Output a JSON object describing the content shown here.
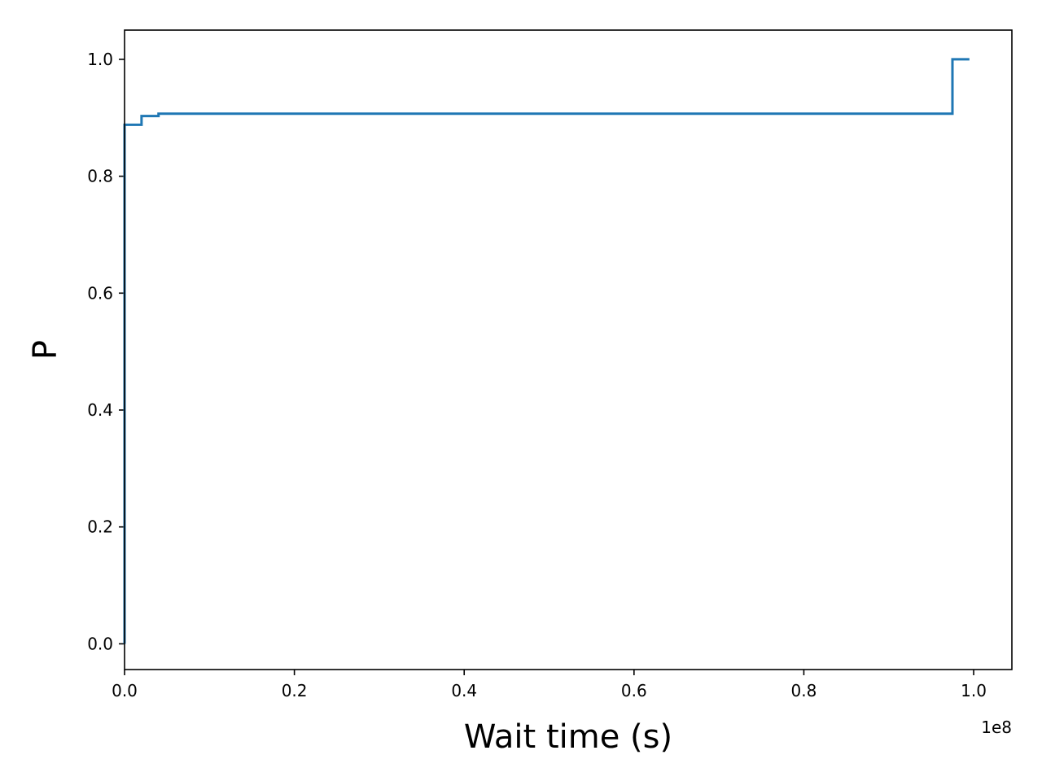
{
  "chart_data": {
    "type": "line",
    "drawstyle": "steps-post",
    "xlabel": "Wait time (s)",
    "ylabel": "P",
    "x_offset_label": "1e8",
    "xlim": [
      0,
      104500000
    ],
    "ylim": [
      -0.044,
      1.05
    ],
    "x_ticks": [
      0,
      20000000,
      40000000,
      60000000,
      80000000,
      100000000
    ],
    "x_tick_labels": [
      "0.0",
      "0.2",
      "0.4",
      "0.6",
      "0.8",
      "1.0"
    ],
    "y_ticks": [
      0,
      0.2,
      0.4,
      0.6,
      0.8,
      1.0
    ],
    "y_tick_labels": [
      "0.0",
      "0.2",
      "0.4",
      "0.6",
      "0.8",
      "1.0"
    ],
    "grid": false,
    "series": [
      {
        "color": "#1f77b4",
        "x": [
          0,
          0,
          2000000,
          4000000,
          97500000,
          99500000
        ],
        "y": [
          0.0,
          0.888,
          0.903,
          0.907,
          1.0,
          1.0
        ]
      }
    ]
  }
}
